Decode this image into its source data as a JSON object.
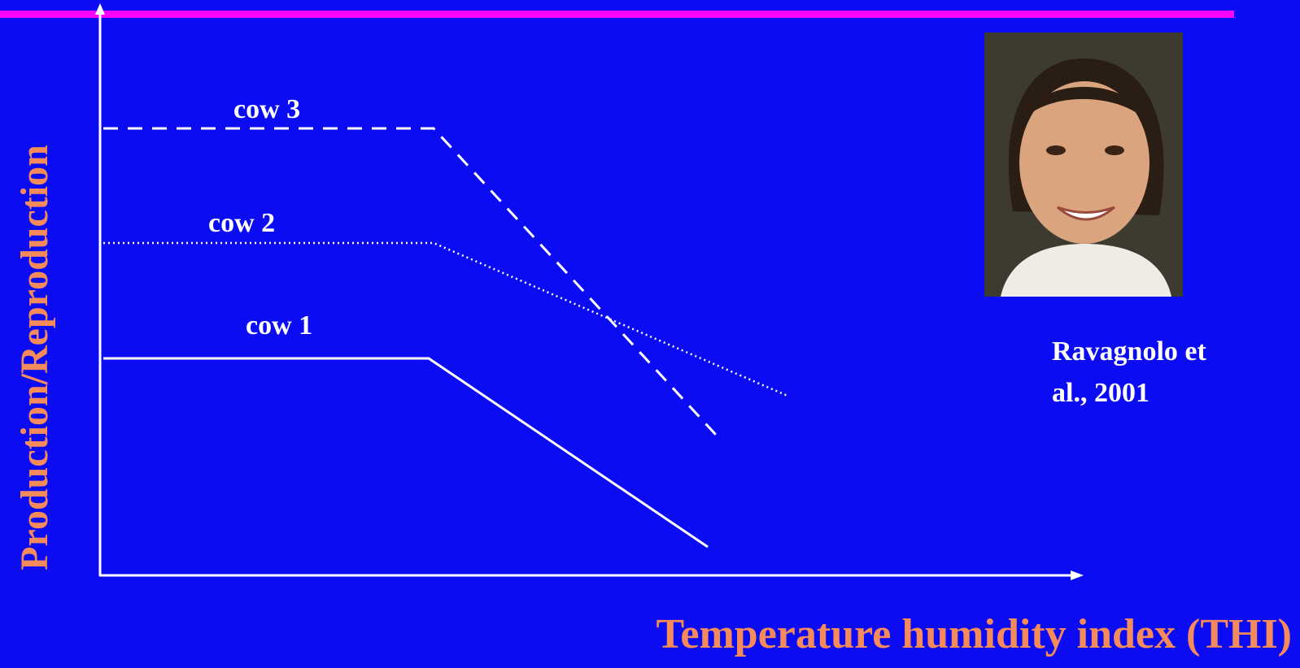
{
  "y_axis_label": "Production/Reproduction",
  "x_axis_label": "Temperature humidity index (THI)",
  "curves": [
    {
      "label": "cow 3"
    },
    {
      "label": "cow 2"
    },
    {
      "label": "cow 1"
    }
  ],
  "citation": [
    "Ravagnolo et",
    "al., 2001"
  ]
}
